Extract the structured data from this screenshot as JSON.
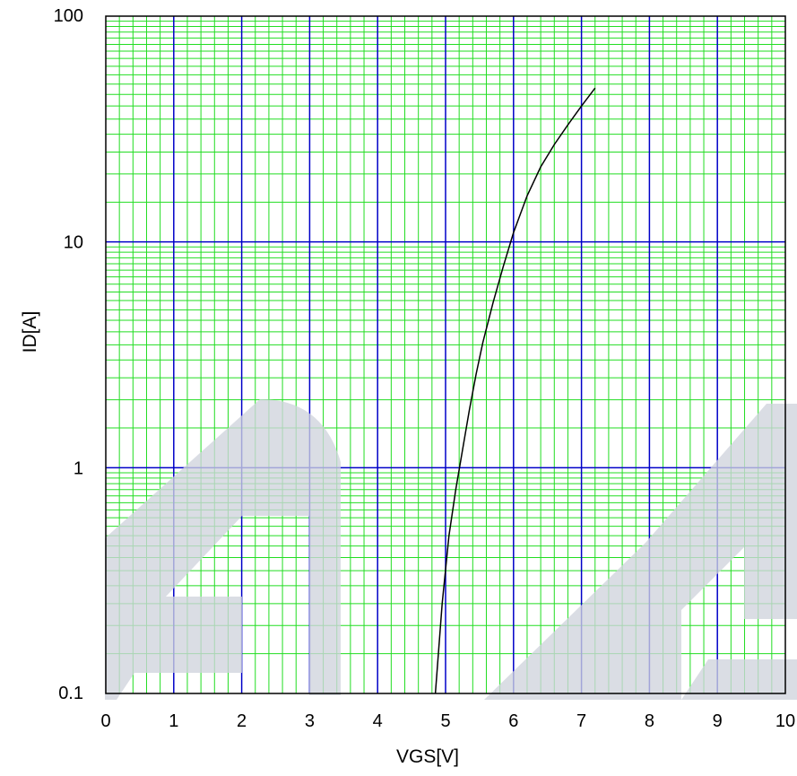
{
  "chart_data": {
    "type": "line",
    "title": "",
    "xlabel": "VGS[V]",
    "ylabel": "ID[A]",
    "xlim": [
      0,
      10
    ],
    "ylim": [
      0.1,
      100
    ],
    "y_scale": "log",
    "x_ticks": [
      "0",
      "1",
      "2",
      "3",
      "4",
      "5",
      "6",
      "7",
      "8",
      "9",
      "10"
    ],
    "y_ticks": [
      "0.1",
      "1",
      "10",
      "100"
    ],
    "grid": true,
    "colors": {
      "major_grid": "#0000c8",
      "minor_grid": "#22dd22",
      "curve": "#000000",
      "watermark": "#cfd4dc"
    },
    "series": [
      {
        "x": [
          4.85,
          4.95,
          5.05,
          5.15,
          5.25,
          5.35,
          5.45,
          5.55,
          5.7,
          5.85,
          6.0,
          6.2,
          6.4,
          6.6,
          6.8,
          7.0,
          7.2
        ],
        "y": [
          0.1,
          0.25,
          0.5,
          0.8,
          1.2,
          1.8,
          2.6,
          3.6,
          5.4,
          7.8,
          11,
          16,
          21.5,
          27,
          33,
          40,
          48
        ]
      }
    ]
  }
}
